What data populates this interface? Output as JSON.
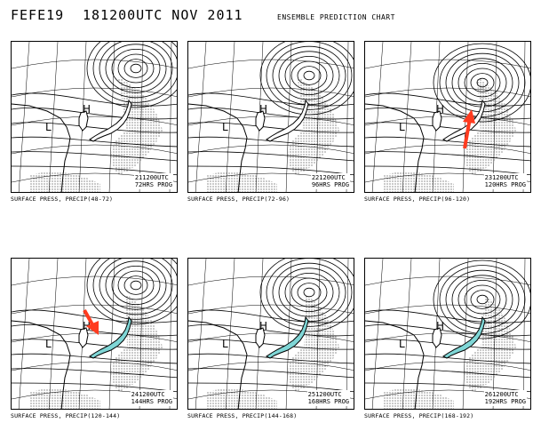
{
  "header": {
    "code": "FEFE19",
    "time": "181200UTC NOV 2011",
    "chart": "ENSEMBLE PREDICTION CHART"
  },
  "colors": {
    "precip_highlight": "#7fd6d6",
    "arrow": "#ff3b1f"
  },
  "panels": [
    {
      "valid": "211200UTC",
      "prog": "72HRS PROG",
      "caption": "SURFACE PRESS, PRECIP(48-72)",
      "highlight": false,
      "arrow": "none"
    },
    {
      "valid": "221200UTC",
      "prog": "96HRS PROG",
      "caption": "SURFACE PRESS, PRECIP(72-96)",
      "highlight": false,
      "arrow": "none"
    },
    {
      "valid": "231200UTC",
      "prog": "120HRS PROG",
      "caption": "SURFACE PRESS, PRECIP(96-120)",
      "highlight": false,
      "arrow": "up"
    },
    {
      "valid": "241200UTC",
      "prog": "144HRS PROG",
      "caption": "SURFACE PRESS, PRECIP(120-144)",
      "highlight": true,
      "arrow": "down-right"
    },
    {
      "valid": "251200UTC",
      "prog": "168HRS PROG",
      "caption": "SURFACE PRESS, PRECIP(144-168)",
      "highlight": true,
      "arrow": "none"
    },
    {
      "valid": "261200UTC",
      "prog": "192HRS PROG",
      "caption": "SURFACE PRESS, PRECIP(168-192)",
      "highlight": true,
      "arrow": "none"
    }
  ]
}
